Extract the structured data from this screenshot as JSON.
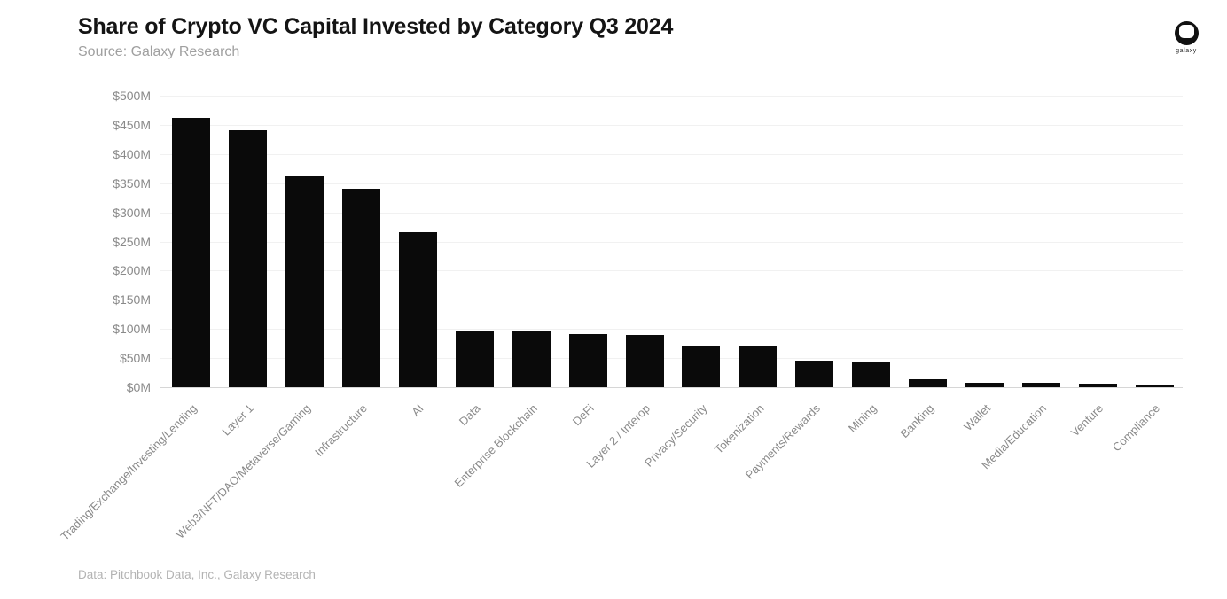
{
  "header": {
    "title": "Share of Crypto VC Capital Invested by Category Q3 2024",
    "subtitle": "Source: Galaxy Research"
  },
  "logo": {
    "label": "galaxy"
  },
  "footer": {
    "text": "Data: Pitchbook Data, Inc., Galaxy Research"
  },
  "chart_data": {
    "type": "bar",
    "title": "Share of Crypto VC Capital Invested by Category Q3 2024",
    "categories": [
      "Trading/Exchange/Investing/Lending",
      "Layer 1",
      "Web3/NFT/DAO/Metaverse/Gaming",
      "Infrastructure",
      "AI",
      "Data",
      "Enterprise Blockchain",
      "DeFi",
      "Layer 2 / Interop",
      "Privacy/Security",
      "Tokenization",
      "Payments/Rewards",
      "Mining",
      "Banking",
      "Wallet",
      "Media/Education",
      "Venture",
      "Compliance"
    ],
    "values": [
      462,
      440,
      361,
      341,
      266,
      95,
      96,
      91,
      90,
      71,
      72,
      46,
      43,
      13,
      7,
      7,
      6,
      4
    ],
    "unit": "$M",
    "ylabel": "",
    "xlabel": "",
    "ylim": [
      0,
      500
    ],
    "y_ticks": [
      "$500M",
      "$450M",
      "$400M",
      "$350M",
      "$300M",
      "$250M",
      "$200M",
      "$150M",
      "$100M",
      "$50M",
      "$0M"
    ],
    "grid": true,
    "legend": false,
    "bar_color": "#0a0a0a",
    "tick_label_color": "#8a8a8a",
    "gridline_color": "#f1f1f1",
    "axis_line_color": "#d6d6d6"
  }
}
